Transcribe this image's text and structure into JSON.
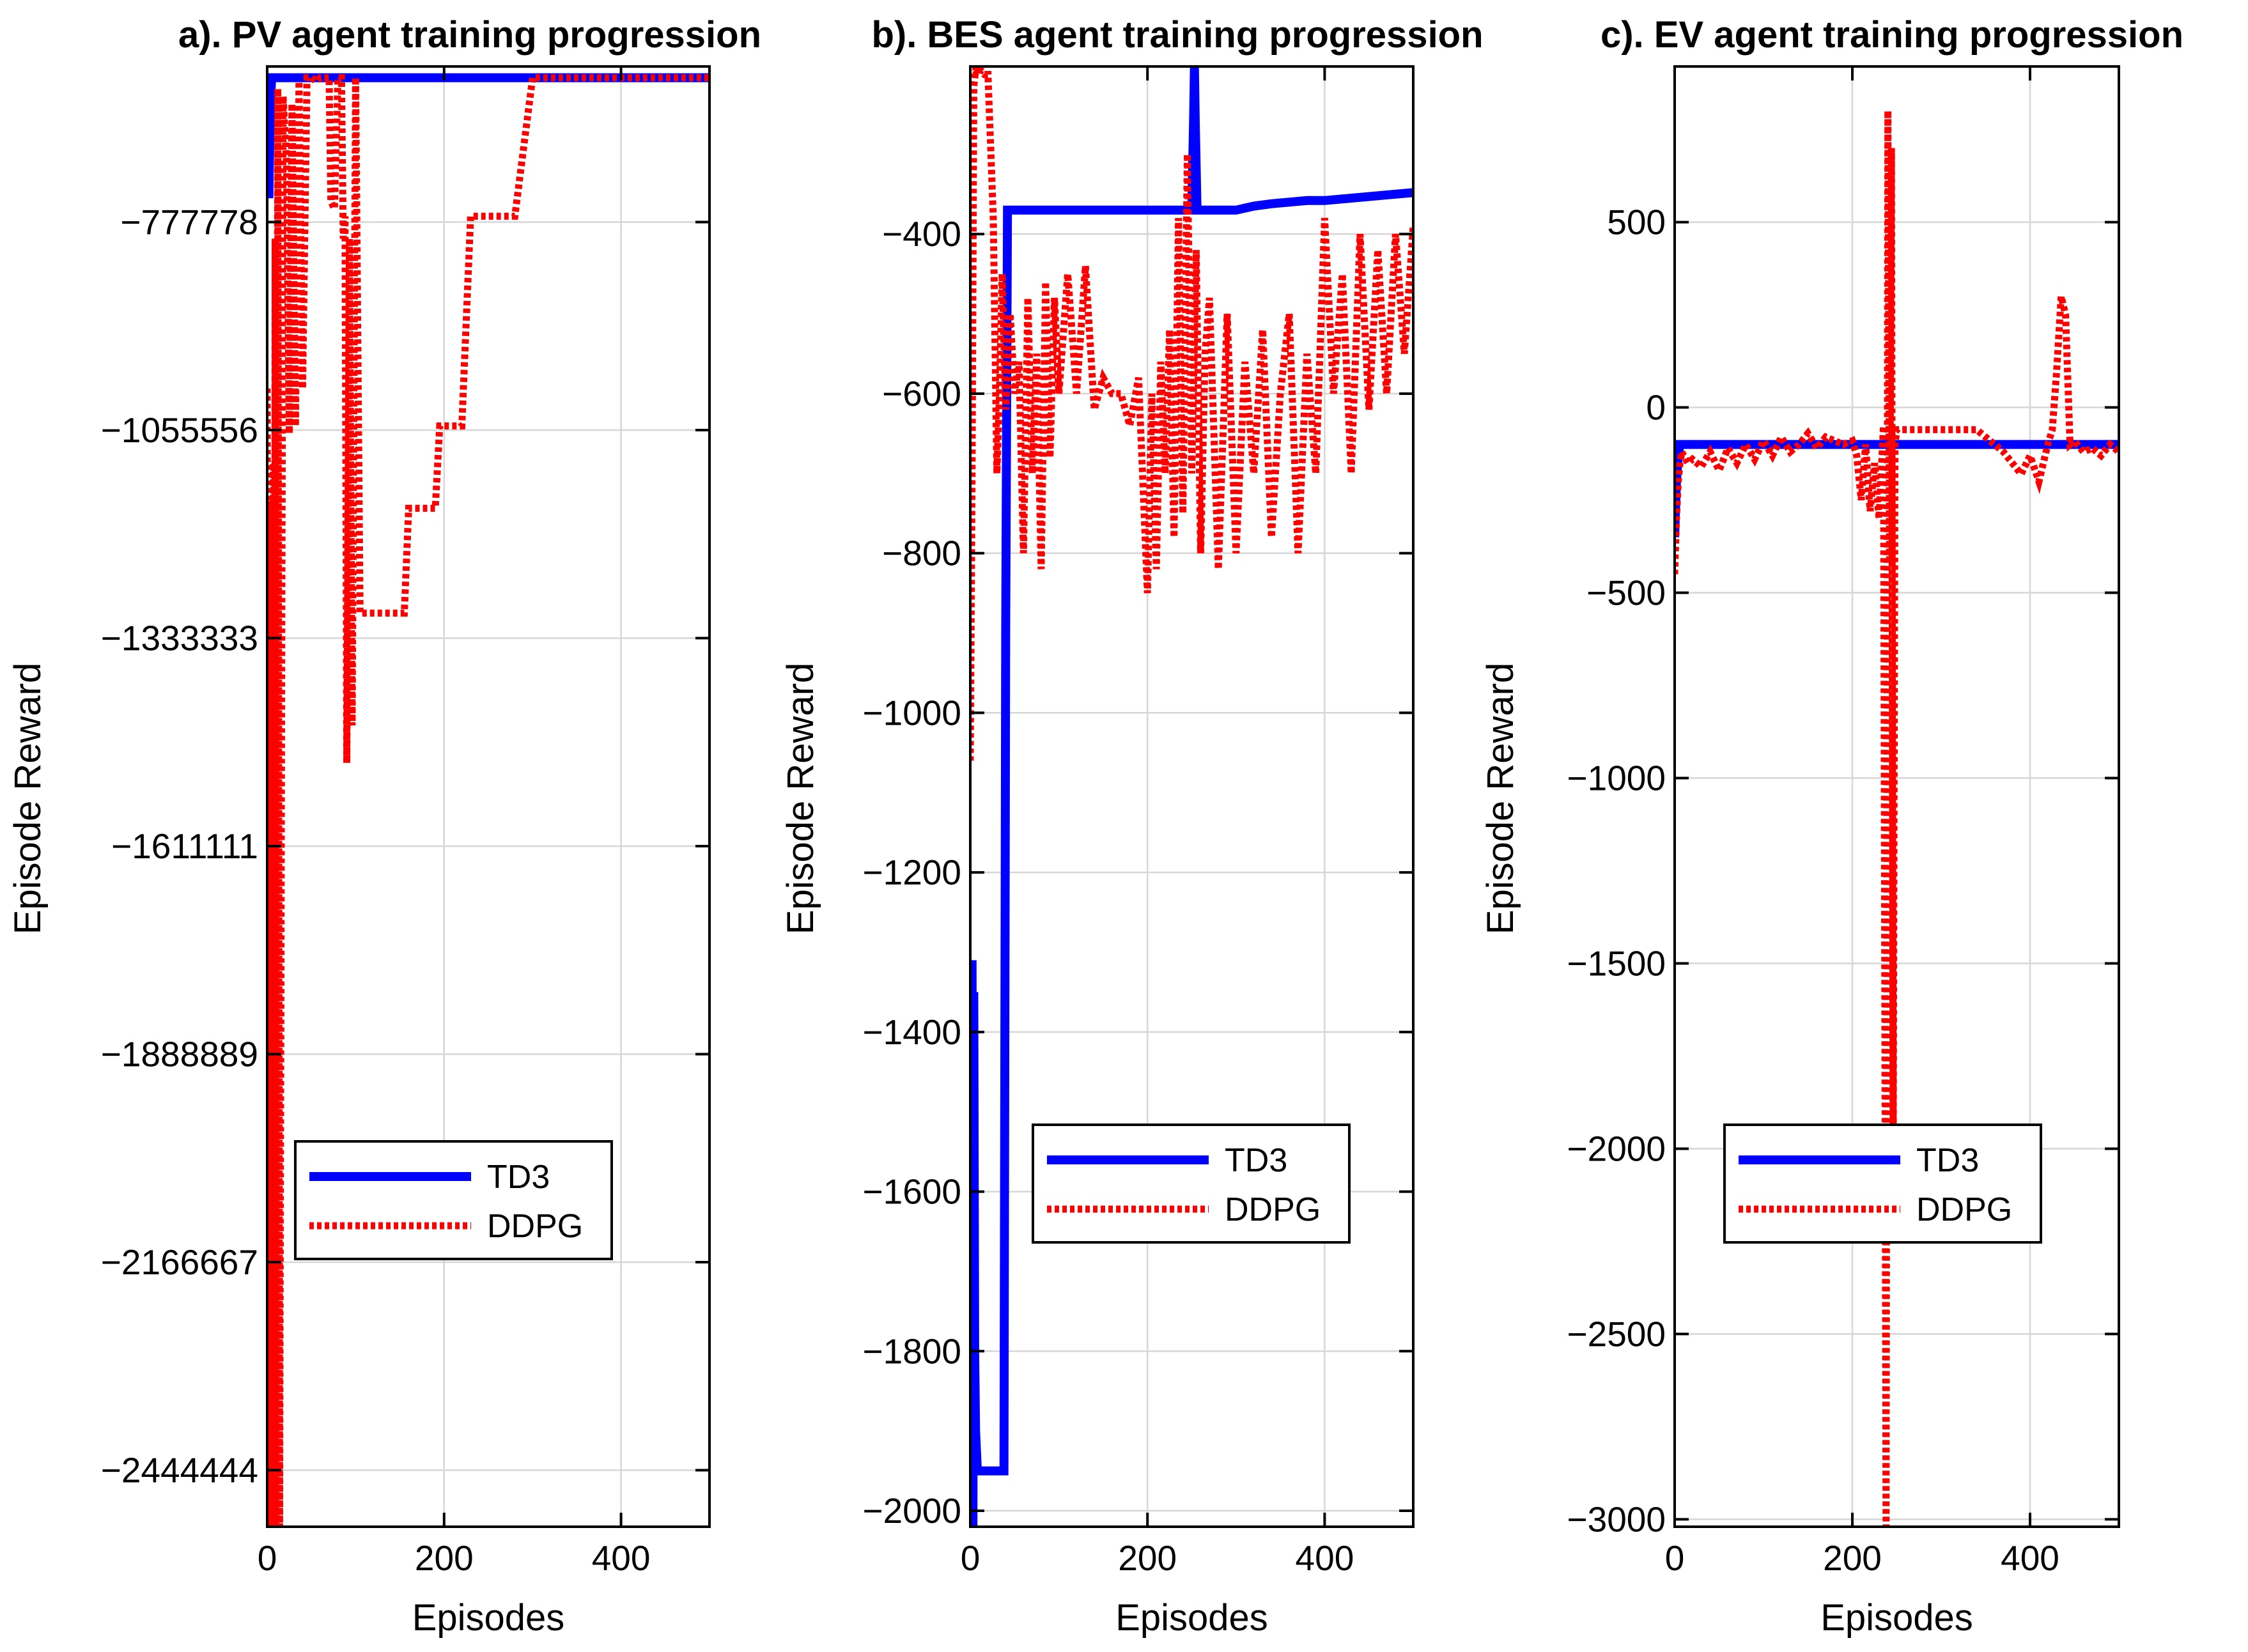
{
  "colors": {
    "td3": "#0000ff",
    "ddpg": "#ff0000",
    "axis": "#000000",
    "grid": "#d6d6d6"
  },
  "chart_data": [
    {
      "type": "line",
      "title": "a). PV agent training progression",
      "xlabel": "Episodes",
      "ylabel": "Episode Reward",
      "xlim": [
        0,
        500
      ],
      "ylim": [
        -2520000,
        -570000
      ],
      "xticks": [
        0,
        200,
        400
      ],
      "xtick_labels": [
        "0",
        "200",
        "400"
      ],
      "yticks": [
        -777778,
        -1055556,
        -1333333,
        -1611111,
        -1888889,
        -2166667,
        -2444444
      ],
      "ytick_labels": [
        "−777778",
        "−1055556",
        "−1333333",
        "−1611111",
        "−1888889",
        "−2166667",
        "−2444444"
      ],
      "grid": true,
      "legend": {
        "position": "lower-center",
        "entries": [
          "TD3",
          "DDPG"
        ]
      },
      "series": [
        {
          "name": "TD3",
          "style": "solid",
          "x": [
            0,
            2,
            3,
            4,
            5,
            500
          ],
          "y": [
            -740000,
            -740000,
            -660000,
            -615000,
            -585000,
            -585000
          ]
        },
        {
          "name": "DDPG",
          "style": "dotted",
          "x": [
            0,
            2,
            3,
            4,
            5,
            6,
            7,
            8,
            9,
            10,
            12,
            14,
            18,
            22,
            25,
            28,
            32,
            36,
            40,
            45,
            50,
            56,
            60,
            66,
            70,
            72,
            76,
            80,
            84,
            86,
            88,
            90,
            93,
            96,
            100,
            105,
            120,
            140,
            155,
            160,
            170,
            180,
            190,
            195,
            200,
            210,
            220,
            230,
            240,
            250,
            260,
            280,
            300,
            310,
            320,
            400,
            500
          ],
          "y": [
            -1000000,
            -2520000,
            -1150000,
            -2520000,
            -1300000,
            -2520000,
            -1100000,
            -2520000,
            -800000,
            -2520000,
            -600000,
            -2520000,
            -610000,
            -700000,
            -1060000,
            -620000,
            -1050000,
            -590000,
            -1000000,
            -585000,
            -585000,
            -590000,
            -585000,
            -585000,
            -585000,
            -750000,
            -760000,
            -585000,
            -585000,
            -800000,
            -770000,
            -1500000,
            -800000,
            -1450000,
            -585000,
            -1300000,
            -1300000,
            -1300000,
            -1300000,
            -1160000,
            -1160000,
            -1160000,
            -1160000,
            -1050000,
            -1050000,
            -1050000,
            -1050000,
            -770000,
            -770000,
            -770000,
            -770000,
            -770000,
            -585000,
            -585000,
            -585000,
            -585000,
            -585000
          ]
        }
      ]
    },
    {
      "type": "line",
      "title": "b). BES agent training progression",
      "xlabel": "Episodes",
      "ylabel": "Episode Reward",
      "xlim": [
        0,
        500
      ],
      "ylim": [
        -2020,
        -190
      ],
      "xticks": [
        0,
        200,
        400
      ],
      "xtick_labels": [
        "0",
        "200",
        "400"
      ],
      "yticks": [
        -400,
        -600,
        -800,
        -1000,
        -1200,
        -1400,
        -1600,
        -1800,
        -2000
      ],
      "ytick_labels": [
        "−400",
        "−600",
        "−800",
        "−1000",
        "−1200",
        "−1400",
        "−1600",
        "−1800",
        "−2000"
      ],
      "grid": true,
      "legend": {
        "position": "lower-center",
        "entries": [
          "TD3",
          "DDPG"
        ]
      },
      "series": [
        {
          "name": "TD3",
          "style": "solid",
          "x": [
            0,
            1,
            2,
            3,
            4,
            5,
            6,
            8,
            10,
            15,
            20,
            25,
            30,
            35,
            38,
            40,
            42,
            200,
            250,
            252,
            253,
            254,
            256,
            258,
            260,
            300,
            320,
            340,
            360,
            380,
            400,
            420,
            440,
            460,
            480,
            500
          ],
          "y": [
            -1580,
            -1670,
            -1310,
            -2020,
            -1350,
            -1800,
            -1900,
            -1950,
            -1950,
            -1950,
            -1950,
            -1950,
            -1950,
            -1950,
            -1950,
            -900,
            -370,
            -370,
            -370,
            -260,
            -190,
            -260,
            -370,
            -370,
            -370,
            -370,
            -365,
            -362,
            -360,
            -358,
            -358,
            -356,
            -354,
            -352,
            -350,
            -348
          ]
        },
        {
          "name": "DDPG",
          "style": "dotted",
          "x": [
            0,
            2,
            4,
            6,
            8,
            10,
            12,
            16,
            20,
            26,
            30,
            33,
            36,
            40,
            45,
            50,
            55,
            60,
            65,
            70,
            75,
            80,
            85,
            90,
            95,
            100,
            110,
            120,
            130,
            140,
            150,
            160,
            170,
            180,
            190,
            200,
            205,
            210,
            215,
            220,
            225,
            230,
            235,
            240,
            245,
            250,
            255,
            260,
            265,
            270,
            280,
            290,
            300,
            310,
            320,
            330,
            340,
            350,
            360,
            370,
            380,
            390,
            400,
            410,
            420,
            430,
            440,
            450,
            460,
            470,
            480,
            490,
            500
          ],
          "y": [
            -1060,
            -700,
            -215,
            -195,
            -200,
            -200,
            -195,
            -200,
            -200,
            -380,
            -700,
            -600,
            -450,
            -620,
            -500,
            -600,
            -560,
            -800,
            -480,
            -700,
            -550,
            -820,
            -460,
            -680,
            -480,
            -600,
            -450,
            -600,
            -440,
            -620,
            -580,
            -600,
            -600,
            -640,
            -580,
            -850,
            -600,
            -820,
            -560,
            -700,
            -520,
            -780,
            -380,
            -750,
            -300,
            -700,
            -420,
            -800,
            -550,
            -480,
            -820,
            -500,
            -800,
            -560,
            -700,
            -520,
            -780,
            -600,
            -500,
            -800,
            -550,
            -700,
            -380,
            -600,
            -450,
            -700,
            -400,
            -620,
            -420,
            -600,
            -400,
            -550,
            -390
          ]
        }
      ]
    },
    {
      "type": "line",
      "title": "c). EV agent training progression",
      "xlabel": "Episodes",
      "ylabel": "Episode Reward",
      "xlim": [
        0,
        500
      ],
      "ylim": [
        -3020,
        920
      ],
      "xticks": [
        0,
        200,
        400
      ],
      "xtick_labels": [
        "0",
        "200",
        "400"
      ],
      "yticks": [
        500,
        0,
        -500,
        -1000,
        -1500,
        -2000,
        -2500,
        -3000
      ],
      "ytick_labels": [
        "500",
        "0",
        "−500",
        "−1000",
        "−1500",
        "−2000",
        "−2500",
        "−3000"
      ],
      "grid": true,
      "legend": {
        "position": "lower-center",
        "entries": [
          "TD3",
          "DDPG"
        ]
      },
      "series": [
        {
          "name": "TD3",
          "style": "solid",
          "x": [
            0,
            2,
            4,
            6,
            10,
            500
          ],
          "y": [
            -350,
            -200,
            -130,
            -100,
            -100,
            -100
          ]
        },
        {
          "name": "DDPG",
          "style": "dotted",
          "x": [
            0,
            2,
            4,
            6,
            8,
            10,
            15,
            20,
            30,
            40,
            50,
            60,
            70,
            80,
            90,
            100,
            110,
            120,
            130,
            140,
            150,
            160,
            170,
            180,
            190,
            200,
            205,
            210,
            215,
            220,
            225,
            230,
            235,
            238,
            240,
            242,
            244,
            246,
            248,
            250,
            260,
            280,
            300,
            320,
            340,
            350,
            360,
            370,
            380,
            390,
            400,
            410,
            420,
            425,
            430,
            435,
            440,
            445,
            450,
            460,
            470,
            480,
            490,
            500
          ],
          "y": [
            -450,
            -300,
            -200,
            -150,
            -120,
            -130,
            -150,
            -140,
            -160,
            -120,
            -170,
            -110,
            -150,
            -100,
            -140,
            -90,
            -130,
            -80,
            -120,
            -100,
            -70,
            -110,
            -80,
            -90,
            -100,
            -90,
            -130,
            -250,
            -100,
            -280,
            -150,
            -300,
            -50,
            -3020,
            800,
            -420,
            700,
            -2000,
            -100,
            -60,
            -60,
            -60,
            -60,
            -60,
            -60,
            -80,
            -100,
            -120,
            -150,
            -180,
            -130,
            -200,
            -100,
            -60,
            100,
            300,
            250,
            -100,
            -90,
            -120,
            -110,
            -130,
            -100,
            -120
          ]
        }
      ]
    }
  ]
}
